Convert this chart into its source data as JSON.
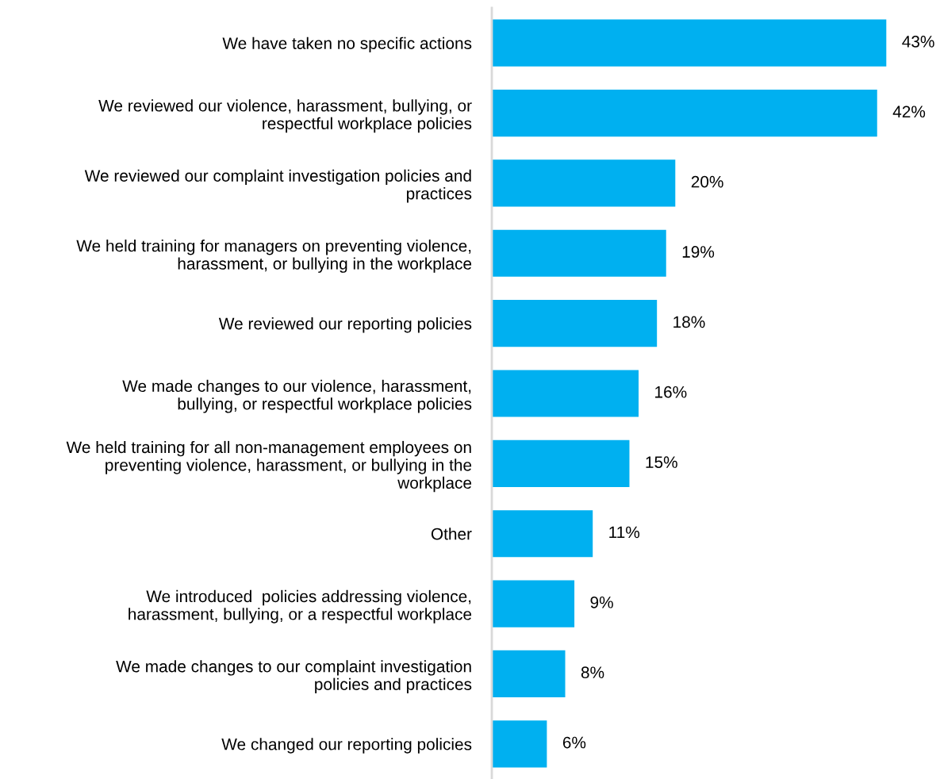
{
  "chart_data": {
    "type": "bar",
    "orientation": "horizontal",
    "categories": [
      "We have taken no specific actions",
      "We reviewed our violence, harassment, bullying, or\nrespectful workplace policies",
      "We reviewed our complaint investigation policies and\npractices",
      "We held training for managers on preventing violence,\nharassment, or bullying in the workplace",
      "We reviewed our reporting policies",
      "We made changes to our violence, harassment,\nbullying, or respectful workplace policies",
      "We held training for all non-management employees on\npreventing violence, harassment, or bullying in the\nworkplace",
      "Other",
      "We introduced  policies addressing violence,\nharassment, bullying, or a respectful workplace",
      "We made changes to our complaint investigation\npolicies and practices",
      "We changed our reporting policies"
    ],
    "values": [
      43,
      42,
      20,
      19,
      18,
      16,
      15,
      11,
      9,
      8,
      6
    ],
    "value_labels": [
      "43%",
      "42%",
      "20%",
      "19%",
      "18%",
      "16%",
      "15%",
      "11%",
      "9%",
      "8%",
      "6%"
    ],
    "color": "#00b0f0",
    "grid": false,
    "legend": false
  }
}
